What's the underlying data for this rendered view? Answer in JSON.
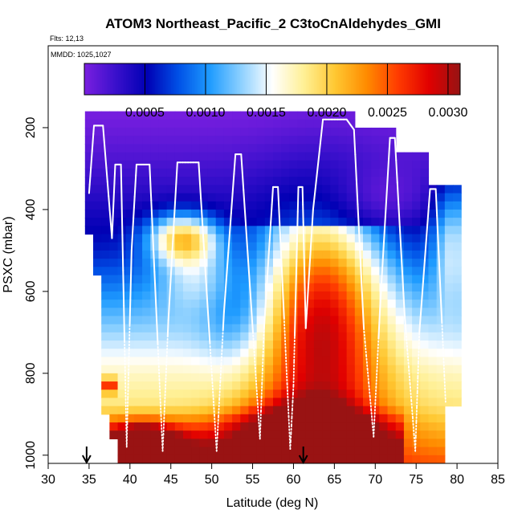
{
  "chart_data": {
    "type": "heatmap",
    "title": "ATOM3 Northeast_Pacific_2 C3toCnAldehydes_GMI",
    "subtitle_flts": "Flts: 12,13",
    "subtitle_mmdd": "MMDD: 1025,1027",
    "xlabel": "Latitude (deg N)",
    "ylabel": "PSXC (mbar)",
    "xlim": [
      30,
      85
    ],
    "ylim": [
      1020,
      0
    ],
    "x_ticks": [
      "30",
      "35",
      "40",
      "45",
      "50",
      "55",
      "60",
      "65",
      "70",
      "75",
      "80",
      "85"
    ],
    "y_ticks": [
      "200",
      "400",
      "600",
      "800",
      "1000"
    ],
    "colorbar": {
      "min": 0.0,
      "max": 0.0031,
      "tick_labels": [
        "0.0005",
        "0.0010",
        "0.0015",
        "0.0020",
        "0.0025",
        "0.0030"
      ],
      "colors": [
        "#7a1fe0",
        "#3a10cc",
        "#0000b4",
        "#0050e6",
        "#1e9bff",
        "#8cd0ff",
        "#ffffff",
        "#fff096",
        "#ffc832",
        "#ff8c00",
        "#ff3c00",
        "#e10000",
        "#961414"
      ]
    },
    "arrows_at_latitude": [
      34.7,
      61.2
    ],
    "flight_track": [
      [
        35.0,
        360
      ],
      [
        35.6,
        195
      ],
      [
        36.7,
        195
      ],
      [
        37.8,
        470
      ],
      [
        38.2,
        290
      ],
      [
        38.9,
        290
      ],
      [
        39.6,
        980
      ],
      [
        40.2,
        500
      ],
      [
        40.8,
        290
      ],
      [
        42.4,
        290
      ],
      [
        44.0,
        990
      ],
      [
        44.7,
        670
      ],
      [
        45.8,
        285
      ],
      [
        48.4,
        285
      ],
      [
        50.6,
        990
      ],
      [
        51.5,
        650
      ],
      [
        52.9,
        265
      ],
      [
        53.6,
        265
      ],
      [
        55.9,
        960
      ],
      [
        56.4,
        690
      ],
      [
        57.5,
        345
      ],
      [
        58.1,
        345
      ],
      [
        59.6,
        985
      ],
      [
        60.0,
        830
      ],
      [
        60.6,
        345
      ],
      [
        61.1,
        345
      ],
      [
        61.5,
        690
      ],
      [
        62.4,
        400
      ],
      [
        63.6,
        180
      ],
      [
        66.5,
        180
      ],
      [
        67.4,
        205
      ],
      [
        68.6,
        690
      ],
      [
        69.8,
        955
      ],
      [
        70.6,
        635
      ],
      [
        71.8,
        225
      ],
      [
        72.4,
        225
      ],
      [
        73.6,
        660
      ],
      [
        74.9,
        990
      ],
      [
        75.4,
        700
      ],
      [
        76.7,
        350
      ],
      [
        77.4,
        350
      ],
      [
        78.6,
        870
      ]
    ]
  }
}
